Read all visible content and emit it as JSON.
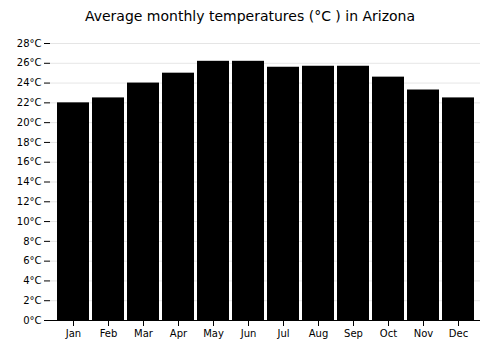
{
  "chart_data": {
    "type": "bar",
    "title": "Average monthly temperatures (°C ) in Arizona",
    "categories": [
      "Jan",
      "Feb",
      "Mar",
      "Apr",
      "May",
      "Jun",
      "Jul",
      "Aug",
      "Sep",
      "Oct",
      "Nov",
      "Dec"
    ],
    "values": [
      22.0,
      22.5,
      24.0,
      25.0,
      26.2,
      26.2,
      25.6,
      25.7,
      25.7,
      24.6,
      23.3,
      22.5
    ],
    "ylim": [
      0,
      28
    ],
    "yticks": [
      {
        "value": 0,
        "label": "0°C"
      },
      {
        "value": 2,
        "label": "2°C"
      },
      {
        "value": 4,
        "label": "4°C"
      },
      {
        "value": 6,
        "label": "6°C"
      },
      {
        "value": 8,
        "label": "8°C"
      },
      {
        "value": 10,
        "label": "10°C"
      },
      {
        "value": 12,
        "label": "12°C"
      },
      {
        "value": 14,
        "label": "14°C"
      },
      {
        "value": 16,
        "label": "16°C"
      },
      {
        "value": 18,
        "label": "18°C"
      },
      {
        "value": 20,
        "label": "20°C"
      },
      {
        "value": 22,
        "label": "22°C"
      },
      {
        "value": 24,
        "label": "24°C"
      },
      {
        "value": 26,
        "label": "26°C"
      },
      {
        "value": 28,
        "label": "28°C"
      }
    ],
    "grid": true
  }
}
